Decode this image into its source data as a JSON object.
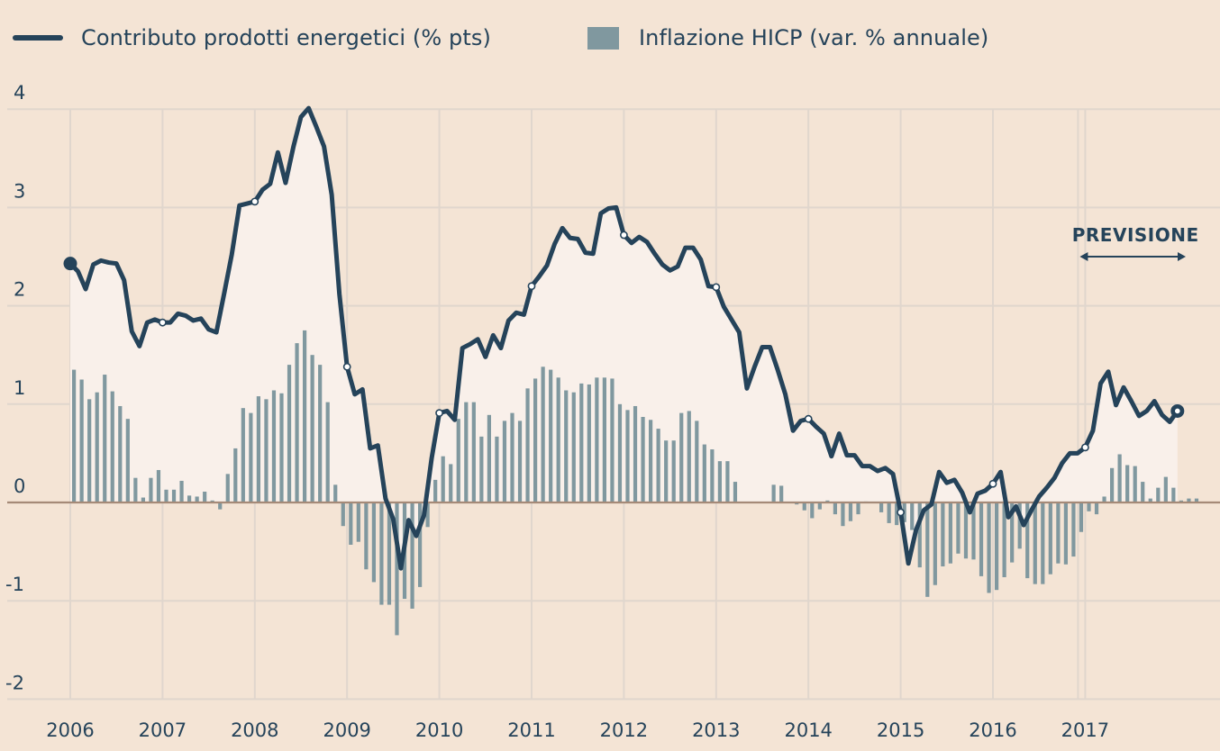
{
  "legend": {
    "line_label": "Contributo prodotti energetici (% pts)",
    "bar_label": "Inflazione HICP (var. % annuale)"
  },
  "colors": {
    "background": "#f4e4d5",
    "line": "#25435a",
    "bar": "#80989f",
    "area_fill": "#f9f0ea",
    "grid": "#e0d6cd",
    "zero_line": "#a58a78",
    "text": "#25435a"
  },
  "annotation": {
    "label": "PREVISIONE",
    "start": "2016-12",
    "end": "2017-12"
  },
  "chart_data": {
    "type": "bar+line",
    "title": "",
    "xlabel": "",
    "ylabel": "",
    "ylim": [
      -2.2,
      4.3
    ],
    "yticks": [
      4,
      3,
      2,
      1,
      0,
      -1,
      -2
    ],
    "ytick_labels": [
      "4",
      "3",
      "2",
      "1",
      "0",
      "-1",
      "-2"
    ],
    "xticks": [
      "2006",
      "2007",
      "2008",
      "2009",
      "2010",
      "2011",
      "2012",
      "2013",
      "2014",
      "2015",
      "2016",
      "2017"
    ],
    "x_start": "2006-01",
    "frequency": "monthly",
    "grid": true,
    "legend_position": "top-left",
    "series": [
      {
        "name": "Contributo prodotti energetici (% pts)",
        "type": "line",
        "values": [
          2.43,
          2.35,
          2.17,
          2.42,
          2.46,
          2.44,
          2.43,
          2.26,
          1.74,
          1.59,
          1.83,
          1.86,
          1.83,
          1.83,
          1.92,
          1.9,
          1.85,
          1.87,
          1.76,
          1.73,
          2.12,
          2.52,
          3.02,
          3.04,
          3.06,
          3.18,
          3.24,
          3.56,
          3.25,
          3.61,
          3.92,
          4.01,
          3.82,
          3.62,
          3.13,
          2.12,
          1.38,
          1.1,
          1.15,
          0.55,
          0.58,
          0.04,
          -0.17,
          -0.67,
          -0.18,
          -0.34,
          -0.13,
          0.45,
          0.91,
          0.93,
          0.84,
          1.57,
          1.61,
          1.66,
          1.48,
          1.7,
          1.57,
          1.85,
          1.93,
          1.91,
          2.2,
          2.3,
          2.41,
          2.63,
          2.79,
          2.69,
          2.68,
          2.54,
          2.53,
          2.94,
          2.99,
          3.0,
          2.72,
          2.64,
          2.7,
          2.65,
          2.53,
          2.42,
          2.36,
          2.4,
          2.59,
          2.59,
          2.47,
          2.2,
          2.19,
          1.99,
          1.86,
          1.73,
          1.16,
          1.38,
          1.58,
          1.58,
          1.35,
          1.1,
          0.73,
          0.83,
          0.85,
          0.77,
          0.7,
          0.47,
          0.7,
          0.48,
          0.48,
          0.37,
          0.37,
          0.32,
          0.35,
          0.29,
          -0.1,
          -0.62,
          -0.28,
          -0.08,
          -0.02,
          0.31,
          0.2,
          0.23,
          0.1,
          -0.1,
          0.09,
          0.12,
          0.19,
          0.31,
          -0.15,
          -0.04,
          -0.23,
          -0.08,
          0.06,
          0.15,
          0.25,
          0.4,
          0.5,
          0.5,
          0.56,
          0.73,
          1.21,
          1.33,
          0.99,
          1.17,
          1.03,
          0.88,
          0.93,
          1.03,
          0.89,
          0.82,
          0.93
        ]
      },
      {
        "name": "Inflazione HICP (var. % annuale)",
        "type": "bar",
        "values": [
          1.35,
          1.25,
          1.05,
          1.12,
          1.3,
          1.13,
          0.98,
          0.85,
          0.25,
          0.05,
          0.25,
          0.33,
          0.13,
          0.13,
          0.22,
          0.07,
          0.06,
          0.11,
          0.02,
          -0.07,
          0.29,
          0.55,
          0.96,
          0.91,
          1.08,
          1.05,
          1.14,
          1.11,
          1.4,
          1.62,
          1.75,
          1.5,
          1.4,
          1.02,
          0.18,
          -0.24,
          -0.43,
          -0.4,
          -0.68,
          -0.81,
          -1.04,
          -1.04,
          -1.35,
          -0.98,
          -1.08,
          -0.86,
          -0.25,
          0.23,
          0.47,
          0.39,
          0.85,
          1.02,
          1.02,
          0.67,
          0.89,
          0.67,
          0.83,
          0.91,
          0.83,
          1.16,
          1.26,
          1.38,
          1.35,
          1.27,
          1.14,
          1.12,
          1.21,
          1.2,
          1.27,
          1.27,
          1.26,
          1.0,
          0.94,
          0.98,
          0.87,
          0.84,
          0.75,
          0.63,
          0.63,
          0.91,
          0.93,
          0.83,
          0.59,
          0.54,
          0.42,
          0.42,
          0.21,
          0.0,
          0.0,
          0.0,
          0.0,
          0.18,
          0.17,
          0.0,
          -0.02,
          -0.08,
          -0.16,
          -0.07,
          0.02,
          -0.12,
          -0.24,
          -0.19,
          -0.12,
          0.01,
          0.0,
          -0.1,
          -0.21,
          -0.23,
          -0.2,
          -0.28,
          -0.66,
          -0.96,
          -0.84,
          -0.65,
          -0.62,
          -0.52,
          -0.57,
          -0.58,
          -0.75,
          -0.92,
          -0.89,
          -0.76,
          -0.61,
          -0.47,
          -0.77,
          -0.83,
          -0.83,
          -0.73,
          -0.62,
          -0.63,
          -0.55,
          -0.3,
          -0.09,
          -0.12,
          0.06,
          0.35,
          0.49,
          0.38,
          0.37,
          0.21,
          0.04,
          0.15,
          0.26,
          0.15,
          0.02,
          0.04,
          0.04
        ]
      }
    ],
    "markers": {
      "start": "2006-01",
      "end": "2017-12",
      "yearly_open_circles": true
    }
  }
}
